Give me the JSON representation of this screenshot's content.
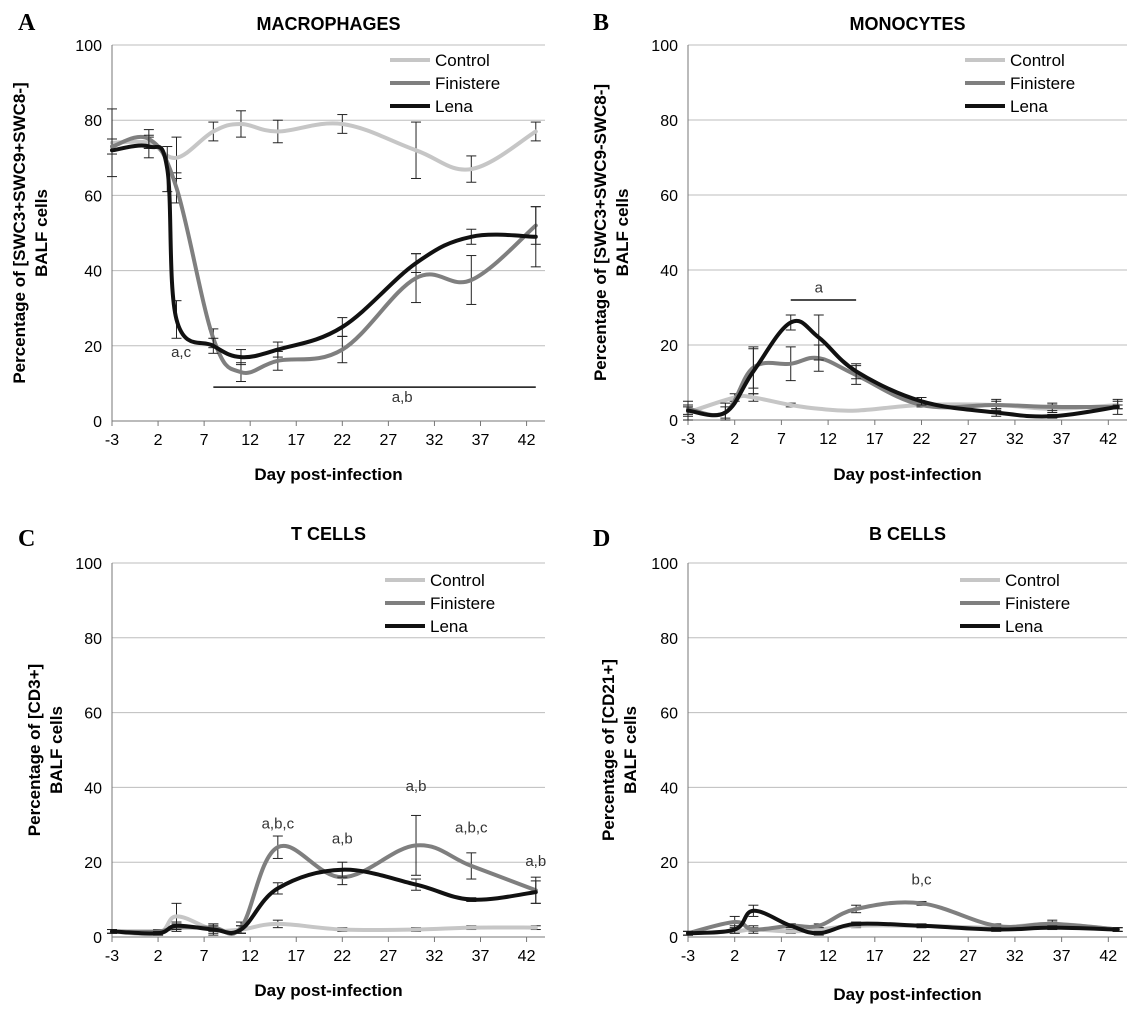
{
  "colors": {
    "Control": "#c6c6c6",
    "Finistere": "#7f7f7f",
    "Lena": "#111111"
  },
  "chart_data": [
    {
      "type": "line",
      "letter": "A",
      "title": "MACROPHAGES",
      "xlabel": "Day post-infection",
      "ylabel_lines": [
        "Percentage of [SWC3+SWC9+SWC8-]",
        "BALF cells"
      ],
      "xticks": [
        -3,
        2,
        7,
        12,
        17,
        22,
        27,
        32,
        37,
        42
      ],
      "yticks": [
        0,
        20,
        40,
        60,
        80,
        100
      ],
      "xlim": [
        -3,
        44
      ],
      "ylim": [
        0,
        100
      ],
      "grid": true,
      "legend": "top-right",
      "series": [
        {
          "name": "Control",
          "x": [
            -3,
            1,
            4,
            8,
            11,
            15,
            22,
            30,
            36,
            43
          ],
          "y": [
            74,
            74,
            70,
            77,
            79,
            77,
            79,
            72,
            67,
            77
          ],
          "err": [
            9,
            1.5,
            5.5,
            2.5,
            3.5,
            3,
            2.5,
            7.5,
            3.5,
            2.5
          ]
        },
        {
          "name": "Finistere",
          "x": [
            -3,
            1,
            4,
            8,
            11,
            15,
            22,
            30,
            36,
            43
          ],
          "y": [
            73,
            75,
            62,
            22,
            13,
            16,
            19,
            38,
            37.5,
            52
          ],
          "err": [
            2,
            2.5,
            4,
            2.5,
            2.5,
            2.5,
            3.5,
            6.5,
            6.5,
            5
          ]
        },
        {
          "name": "Lena",
          "x": [
            -3,
            1,
            3,
            4,
            8,
            11,
            15,
            22,
            30,
            36,
            43
          ],
          "y": [
            72,
            73,
            67,
            27,
            20,
            17,
            19,
            25,
            42,
            49,
            49
          ],
          "err": [
            0,
            3,
            6,
            5,
            2,
            2,
            2,
            2.5,
            2.5,
            2,
            8
          ]
        }
      ],
      "annotations": [
        {
          "text": "a,c",
          "x": 4.5,
          "y": 17
        },
        {
          "text": "a,b",
          "x": 28.5,
          "y": 5
        }
      ],
      "brackets": [
        {
          "x1": 8,
          "x2": 43,
          "y": 9
        }
      ]
    },
    {
      "type": "line",
      "letter": "B",
      "title": "MONOCYTES",
      "xlabel": "Day post-infection",
      "ylabel_lines": [
        "Percentage of [SWC3+SWC9-SWC8-]",
        "BALF cells"
      ],
      "xticks": [
        -3,
        2,
        7,
        12,
        17,
        22,
        27,
        32,
        37,
        42
      ],
      "yticks": [
        0,
        20,
        40,
        60,
        80,
        100
      ],
      "xlim": [
        -3,
        44
      ],
      "ylim": [
        0,
        100
      ],
      "grid": true,
      "legend": "top-right",
      "series": [
        {
          "name": "Control",
          "x": [
            -3,
            2,
            4,
            8,
            11,
            15,
            22,
            30,
            36,
            43
          ],
          "y": [
            2,
            6,
            6,
            4,
            3,
            2.5,
            4,
            4,
            3,
            4
          ],
          "err": [
            2,
            1,
            1,
            0.5,
            0,
            0,
            0.5,
            1.5,
            1,
            1
          ]
        },
        {
          "name": "Finistere",
          "x": [
            -3,
            1,
            4,
            8,
            11,
            15,
            22,
            30,
            36,
            43
          ],
          "y": [
            3,
            2,
            14,
            15,
            16.5,
            12,
            4,
            4,
            3.5,
            3.5
          ],
          "err": [
            2,
            2.5,
            5.5,
            4.5,
            3.5,
            2.5,
            0.5,
            1,
            1,
            2
          ]
        },
        {
          "name": "Lena",
          "x": [
            -3,
            1,
            4,
            8,
            11,
            15,
            22,
            30,
            36,
            43
          ],
          "y": [
            2.5,
            2,
            13,
            26,
            22,
            13,
            5,
            2,
            1,
            3.5
          ],
          "err": [
            1,
            1.5,
            6,
            2,
            6,
            2,
            1,
            1,
            0.5,
            0.5
          ]
        }
      ],
      "annotations": [
        {
          "text": "a",
          "x": 11,
          "y": 34
        }
      ],
      "brackets": [
        {
          "x1": 8,
          "x2": 15,
          "y": 32
        }
      ]
    },
    {
      "type": "line",
      "letter": "C",
      "title": "T CELLS",
      "xlabel": "Day post-infection",
      "ylabel_lines": [
        "Percentage of [CD3+]",
        "BALF cells"
      ],
      "xticks": [
        -3,
        2,
        7,
        12,
        17,
        22,
        27,
        32,
        37,
        42
      ],
      "yticks": [
        0,
        20,
        40,
        60,
        80,
        100
      ],
      "xlim": [
        -3,
        44
      ],
      "ylim": [
        0,
        100
      ],
      "grid": true,
      "legend": "top-right",
      "series": [
        {
          "name": "Control",
          "x": [
            -3,
            2,
            4,
            8,
            11,
            15,
            22,
            30,
            36,
            43
          ],
          "y": [
            1.5,
            1,
            5.5,
            2,
            2,
            3.5,
            2,
            2,
            2.5,
            2.5
          ],
          "err": [
            0.5,
            0.5,
            3.5,
            1.5,
            1,
            1,
            0.5,
            0.5,
            0.5,
            0.5
          ]
        },
        {
          "name": "Finistere",
          "x": [
            -3,
            2,
            4,
            8,
            11,
            15,
            22,
            30,
            36,
            43
          ],
          "y": [
            1.5,
            1.5,
            2.5,
            2.5,
            2.5,
            24,
            16,
            24.5,
            19,
            12.5
          ],
          "err": [
            0.5,
            0.5,
            1,
            1,
            1.5,
            3,
            2,
            8,
            3.5,
            3.5
          ]
        },
        {
          "name": "Lena",
          "x": [
            -3,
            2,
            4,
            8,
            11,
            15,
            22,
            30,
            36,
            43
          ],
          "y": [
            1.5,
            1,
            3,
            2,
            2,
            13,
            18,
            14,
            10,
            12
          ],
          "err": [
            0.5,
            0.5,
            1,
            1,
            1,
            1.5,
            2,
            1.5,
            0.5,
            3
          ]
        }
      ],
      "annotations": [
        {
          "text": "a,b,c",
          "x": 15,
          "y": 29
        },
        {
          "text": "a,b",
          "x": 22,
          "y": 25
        },
        {
          "text": "a,b",
          "x": 30,
          "y": 39
        },
        {
          "text": "a,b,c",
          "x": 36,
          "y": 28
        },
        {
          "text": "a,b",
          "x": 43,
          "y": 19
        }
      ],
      "brackets": []
    },
    {
      "type": "line",
      "letter": "D",
      "title": "B CELLS",
      "xlabel": "Day post-infection",
      "ylabel_lines": [
        "Percentage of [CD21+]",
        "BALF cells"
      ],
      "xticks": [
        -3,
        2,
        7,
        12,
        17,
        22,
        27,
        32,
        37,
        42
      ],
      "yticks": [
        0,
        20,
        40,
        60,
        80,
        100
      ],
      "xlim": [
        -3,
        44
      ],
      "ylim": [
        0,
        100
      ],
      "grid": true,
      "legend": "top-right",
      "series": [
        {
          "name": "Control",
          "x": [
            -3,
            2,
            4,
            8,
            11,
            15,
            22,
            30,
            36,
            43
          ],
          "y": [
            1,
            1.5,
            2,
            1.5,
            2,
            3,
            3,
            2.5,
            3.5,
            2
          ],
          "err": [
            0.5,
            0.5,
            0.5,
            0.5,
            0.5,
            0.5,
            0.5,
            0.5,
            0.5,
            0.5
          ]
        },
        {
          "name": "Finistere",
          "x": [
            -3,
            2,
            4,
            8,
            11,
            15,
            22,
            30,
            36,
            43
          ],
          "y": [
            1,
            4,
            2,
            3,
            3,
            7.5,
            9,
            3,
            3.5,
            2
          ],
          "err": [
            0.5,
            1.5,
            1,
            0.5,
            0.5,
            1,
            0.5,
            0.5,
            1,
            0.5
          ]
        },
        {
          "name": "Lena",
          "x": [
            -3,
            2,
            4,
            8,
            11,
            15,
            22,
            30,
            36,
            43
          ],
          "y": [
            1,
            2,
            7,
            3,
            1,
            3.5,
            3,
            2,
            2.5,
            2
          ],
          "err": [
            0.5,
            1,
            1.5,
            0.5,
            0.5,
            0.5,
            0.5,
            0.5,
            0.5,
            0.5
          ]
        }
      ],
      "annotations": [
        {
          "text": "b,c",
          "x": 22,
          "y": 14
        }
      ],
      "brackets": []
    }
  ]
}
